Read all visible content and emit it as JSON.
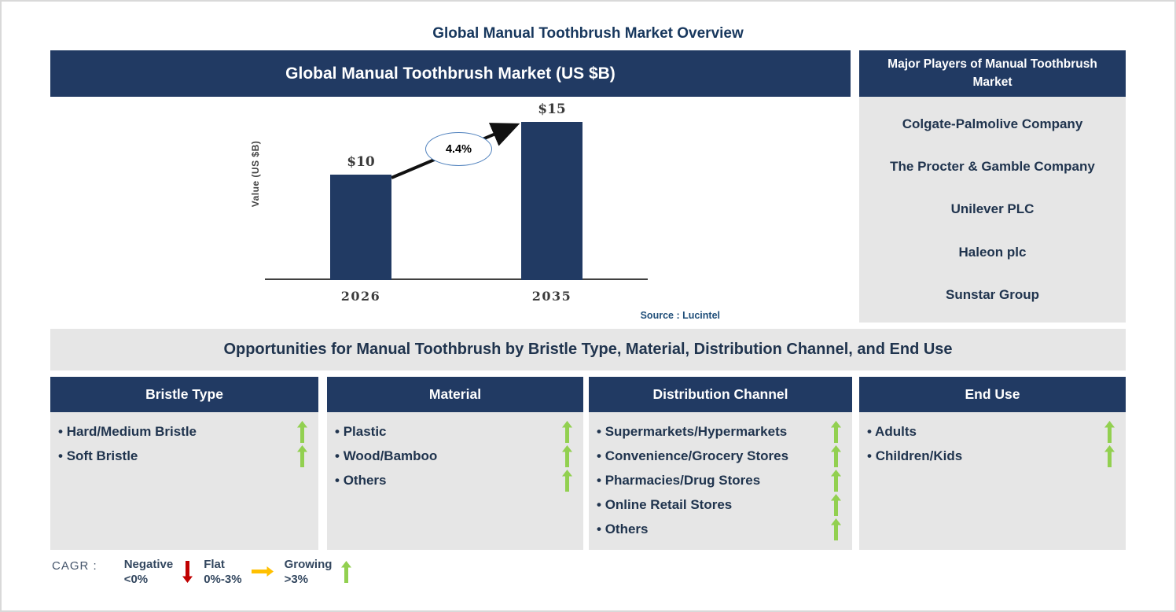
{
  "page_title": "Global Manual Toothbrush Market Overview",
  "chart_panel": {
    "title": "Global Manual Toothbrush Market (US $B)",
    "ylabel": "Value (US $B)",
    "cagr_label": "4.4%",
    "source": "Source : Lucintel"
  },
  "chart_data": {
    "type": "bar",
    "title": "Global Manual Toothbrush Market (US $B)",
    "categories": [
      "2026",
      "2035"
    ],
    "values": [
      10,
      15
    ],
    "value_labels": [
      "$10",
      "$15"
    ],
    "xlabel": "",
    "ylabel": "Value (US $B)",
    "ylim": [
      0,
      17
    ],
    "grid": false,
    "legend_position": "none",
    "bar_color": "#213a63",
    "annotations": [
      {
        "text": "4.4%",
        "kind": "cagr-ellipse",
        "between": [
          "2026",
          "2035"
        ]
      }
    ],
    "source": "Source : Lucintel"
  },
  "players_panel": {
    "title": "Major Players of Manual Toothbrush Market",
    "companies": [
      "Colgate-Palmolive Company",
      "The Procter & Gamble Company",
      "Unilever PLC",
      "Haleon plc",
      "Sunstar Group"
    ]
  },
  "opportunities": {
    "banner": "Opportunities for Manual Toothbrush by Bristle Type, Material, Distribution Channel, and End Use",
    "columns": [
      {
        "title": "Bristle Type",
        "items": [
          {
            "label": "Hard/Medium Bristle",
            "trend": "growing"
          },
          {
            "label": "Soft Bristle",
            "trend": "growing"
          }
        ]
      },
      {
        "title": "Material",
        "items": [
          {
            "label": "Plastic",
            "trend": "growing"
          },
          {
            "label": "Wood/Bamboo",
            "trend": "growing"
          },
          {
            "label": "Others",
            "trend": "growing"
          }
        ]
      },
      {
        "title": "Distribution Channel",
        "items": [
          {
            "label": "Supermarkets/Hypermarkets",
            "trend": "growing"
          },
          {
            "label": "Convenience/Grocery Stores",
            "trend": "growing"
          },
          {
            "label": "Pharmacies/Drug Stores",
            "trend": "growing"
          },
          {
            "label": "Online Retail Stores",
            "trend": "growing"
          },
          {
            "label": "Others",
            "trend": "growing"
          }
        ]
      },
      {
        "title": "End Use",
        "items": [
          {
            "label": "Adults",
            "trend": "growing"
          },
          {
            "label": "Children/Kids",
            "trend": "growing"
          }
        ]
      }
    ]
  },
  "legend": {
    "prefix": "CAGR :",
    "items": [
      {
        "label": "Negative",
        "range": "<0%",
        "icon": "down-arrow",
        "color": "#c00000"
      },
      {
        "label": "Flat",
        "range": "0%-3%",
        "icon": "right-arrow",
        "color": "#ffc000"
      },
      {
        "label": "Growing",
        "range": ">3%",
        "icon": "up-arrow",
        "color": "#92d050"
      }
    ]
  },
  "colors": {
    "navy": "#213a63",
    "panel_gray": "#e6e6e6",
    "text_navy": "#20344e",
    "source_blue": "#1f4e79",
    "growing_green": "#92d050",
    "negative_red": "#c00000",
    "flat_yellow": "#ffc000",
    "arrow_black": "#111111"
  }
}
